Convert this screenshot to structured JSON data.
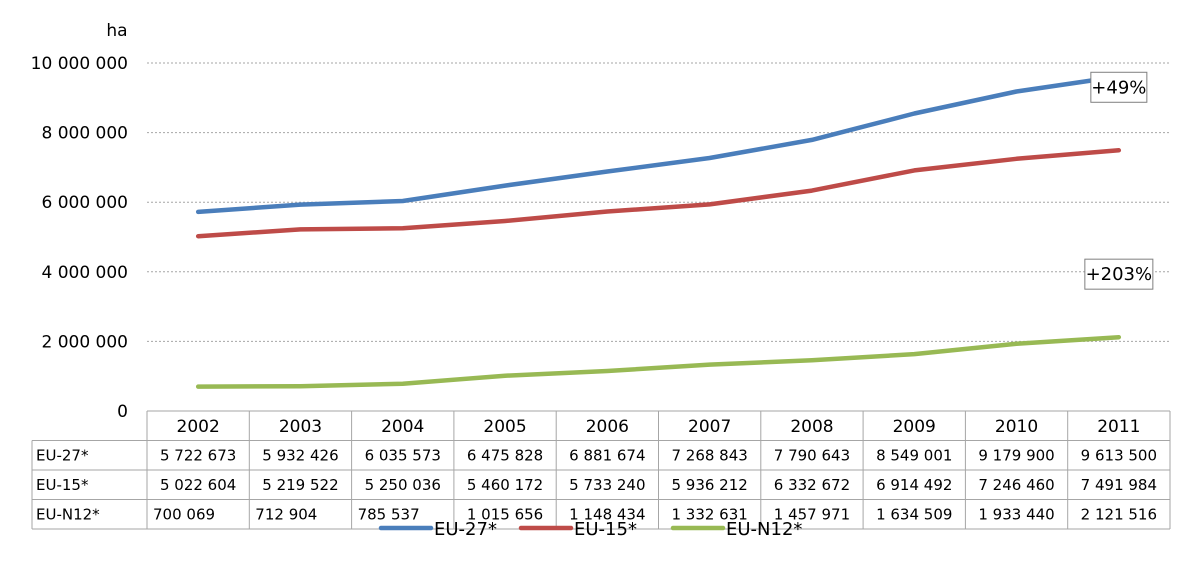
{
  "chart_data": {
    "type": "line",
    "ylabel": "ha",
    "ylim": [
      0,
      10000000
    ],
    "yticks": [
      0,
      2000000,
      4000000,
      6000000,
      8000000,
      10000000
    ],
    "ytick_labels": [
      "0",
      "2 000 000",
      "4 000 000",
      "6 000 000",
      "8 000 000",
      "10 000 000"
    ],
    "categories": [
      "2002",
      "2003",
      "2004",
      "2005",
      "2006",
      "2007",
      "2008",
      "2009",
      "2010",
      "2011"
    ],
    "grid": true,
    "legend": "bottom",
    "series": [
      {
        "name": "EU-27*",
        "color": "#4a7ebb",
        "values": [
          5722673,
          5932426,
          6035573,
          6475828,
          6881674,
          7268843,
          7790643,
          8549001,
          9179900,
          9613500
        ],
        "labels": [
          "5 722 673",
          "5 932 426",
          "6 035 573",
          "6 475 828",
          "6 881 674",
          "7 268 843",
          "7 790 643",
          "8 549 001",
          "9 179 900",
          "9 613 500"
        ]
      },
      {
        "name": "EU-15*",
        "color": "#be4b48",
        "values": [
          5022604,
          5219522,
          5250036,
          5460172,
          5733240,
          5936212,
          6332672,
          6914492,
          7246460,
          7491984
        ],
        "labels": [
          "5 022 604",
          "5 219 522",
          "5 250 036",
          "5 460 172",
          "5 733 240",
          "5 936 212",
          "6 332 672",
          "6 914 492",
          "7 246 460",
          "7 491 984"
        ]
      },
      {
        "name": "EU-N12*",
        "color": "#98b954",
        "values": [
          700069,
          712904,
          785537,
          1015656,
          1148434,
          1332631,
          1457971,
          1634509,
          1933440,
          2121516
        ],
        "labels": [
          "700 069",
          "712 904",
          "785 537",
          "1 015 656",
          "1 148 434",
          "1 332 631",
          "1 457 971",
          "1 634 509",
          "1 933 440",
          "2 121 516"
        ]
      }
    ],
    "annotations": [
      {
        "text": "+49%",
        "series": "EU-15*"
      },
      {
        "text": "+203%",
        "series": "EU-N12*"
      }
    ]
  }
}
